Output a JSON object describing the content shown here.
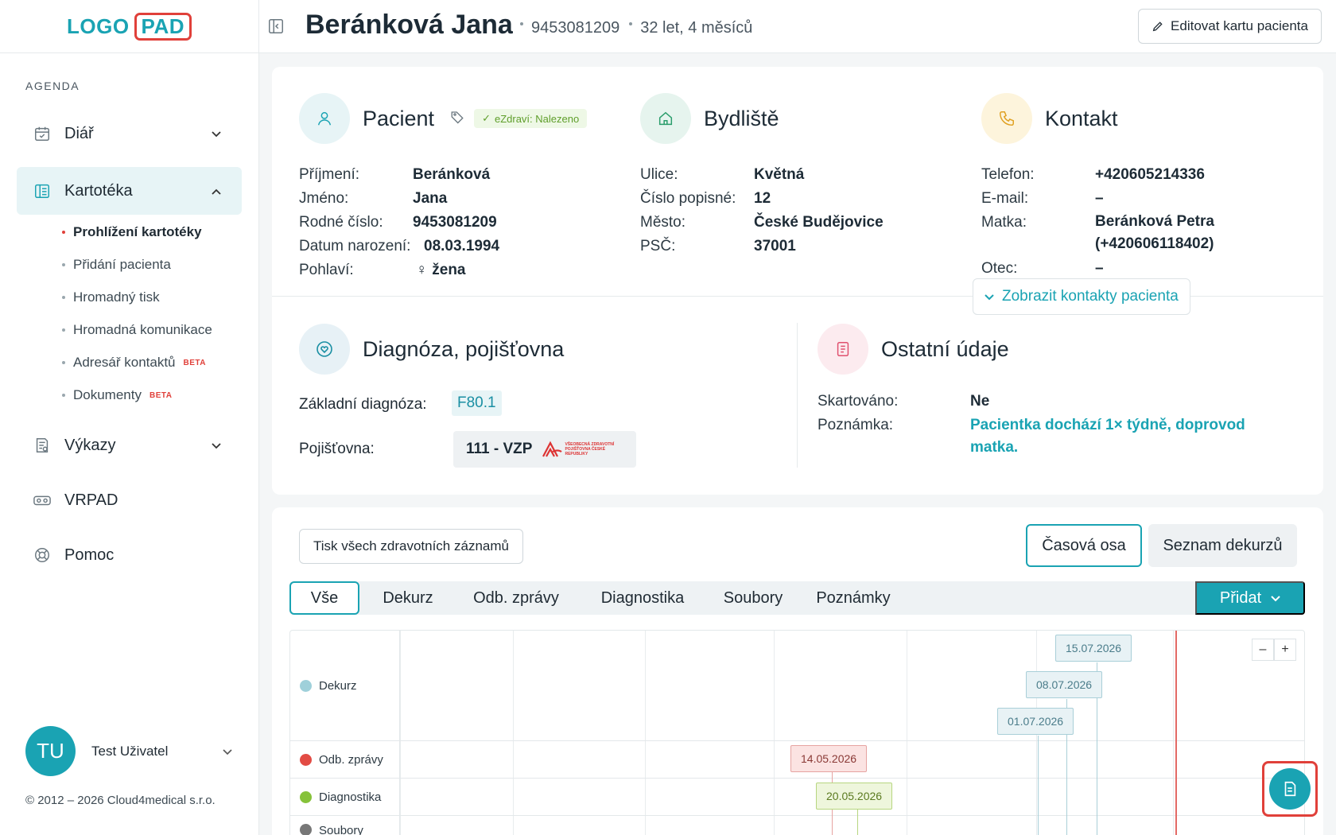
{
  "logo": {
    "part1": "LOGO",
    "part2": "PAD"
  },
  "sidebar": {
    "section_title": "AGENDA",
    "items": [
      {
        "label": "Diář",
        "icon": "calendar-icon"
      },
      {
        "label": "Kartotéka",
        "icon": "card-file-icon"
      },
      {
        "label": "Výkazy",
        "icon": "report-icon"
      },
      {
        "label": "VRPAD",
        "icon": "vr-headset-icon"
      },
      {
        "label": "Pomoc",
        "icon": "lifebuoy-icon"
      }
    ],
    "subitems": [
      {
        "label": "Prohlížení kartotéky"
      },
      {
        "label": "Přidání pacienta"
      },
      {
        "label": "Hromadný tisk"
      },
      {
        "label": "Hromadná komunikace"
      },
      {
        "label": "Adresář kontaktů",
        "badge": "BETA"
      },
      {
        "label": "Dokumenty",
        "badge": "BETA"
      }
    ],
    "user": {
      "initials": "TU",
      "name": "Test Uživatel"
    },
    "copyright": "© 2012 – 2026 Cloud4medical s.r.o."
  },
  "header": {
    "patient_name": "Beránková Jana",
    "birth_number": "9453081209",
    "age": "32 let, 4 měsíců",
    "edit_button": "Editovat kartu pacienta"
  },
  "patient": {
    "title": "Pacient",
    "ezdravi": "eZdraví: Nalezeno",
    "fields": [
      {
        "k": "Příjmení:",
        "v": "Beránková"
      },
      {
        "k": "Jméno:",
        "v": "Jana"
      },
      {
        "k": "Rodné číslo:",
        "v": "9453081209"
      },
      {
        "k": "Datum narození:",
        "v": "08.03.1994"
      },
      {
        "k": "Pohlaví:",
        "v": "žena"
      }
    ]
  },
  "residence": {
    "title": "Bydliště",
    "fields": [
      {
        "k": "Ulice:",
        "v": "Květná"
      },
      {
        "k": "Číslo popisné:",
        "v": "12"
      },
      {
        "k": "Město:",
        "v": "České Budějovice"
      },
      {
        "k": "PSČ:",
        "v": "37001"
      }
    ]
  },
  "contact": {
    "title": "Kontakt",
    "fields": [
      {
        "k": "Telefon:",
        "v": "+420605214336"
      },
      {
        "k": "E-mail:",
        "v": "–"
      },
      {
        "k": "Matka:",
        "v": "Beránková Petra",
        "v2": "(+420606118402)"
      },
      {
        "k": "Otec:",
        "v": "–"
      }
    ],
    "show_button": "Zobrazit kontakty pacienta"
  },
  "diagnosis": {
    "title": "Diagnóza, pojišťovna",
    "basic_label": "Základní diagnóza:",
    "basic_code": "F80.1",
    "insurer_label": "Pojišťovna:",
    "insurer_value": "111 - VZP",
    "insurer_logo_text": "VŠEOBECNÁ ZDRAVOTNÍ POJIŠŤOVNA ČESKÉ REPUBLIKY"
  },
  "other": {
    "title": "Ostatní údaje",
    "shred_label": "Skartováno:",
    "shred_value": "Ne",
    "note_label": "Poznámka:",
    "note_value": "Pacientka dochází 1× týdně, doprovod matka."
  },
  "records": {
    "print_button": "Tisk všech zdravotních záznamů",
    "views": [
      "Časová osa",
      "Seznam dekurzů"
    ],
    "tabs": [
      "Vše",
      "Dekurz",
      "Odb. zprávy",
      "Diagnostika",
      "Soubory",
      "Poznámky"
    ],
    "add_button": "Přidat",
    "zoom_out": "–",
    "zoom_in": "+"
  },
  "timeline": {
    "rows": [
      {
        "label": "Dekurz",
        "color": "#9fd0da"
      },
      {
        "label": "Odb. zprávy",
        "color": "#e24b44"
      },
      {
        "label": "Diagnostika",
        "color": "#86c23a"
      },
      {
        "label": "Soubory",
        "color": "#777777"
      }
    ],
    "events": [
      {
        "row": "Dekurz",
        "date": "15.07.2026"
      },
      {
        "row": "Dekurz",
        "date": "08.07.2026"
      },
      {
        "row": "Dekurz",
        "date": "01.07.2026"
      },
      {
        "row": "Odb. zprávy",
        "date": "14.05.2026"
      },
      {
        "row": "Diagnostika",
        "date": "20.05.2026"
      }
    ]
  },
  "colors": {
    "accent": "#1aa3b3",
    "brand_red": "#e0403a"
  }
}
